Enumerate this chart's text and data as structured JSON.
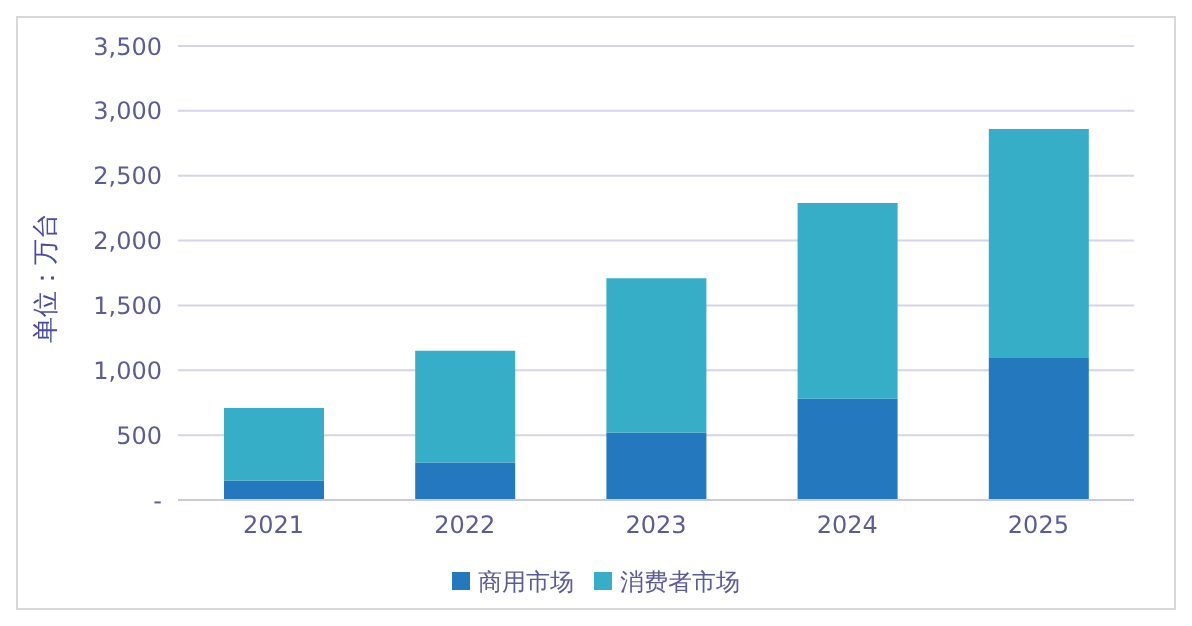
{
  "chart_data": {
    "type": "bar",
    "stacked": true,
    "ylabel": "单位：万台",
    "categories": [
      "2021",
      "2022",
      "2023",
      "2024",
      "2025"
    ],
    "series": [
      {
        "name": "商用市场",
        "color": "#2378be",
        "values": [
          150,
          290,
          520,
          780,
          1100
        ]
      },
      {
        "name": "消费者市场",
        "color": "#36aec8",
        "values": [
          560,
          860,
          1190,
          1510,
          1760
        ]
      }
    ],
    "ylim": [
      0,
      3500
    ],
    "yticks": [
      {
        "value": 0,
        "label": "-"
      },
      500,
      {
        "value": 1000,
        "label": "1,000"
      },
      {
        "value": 1500,
        "label": "1,500"
      },
      {
        "value": 2000,
        "label": "2,000"
      },
      {
        "value": 2500,
        "label": "2,500"
      },
      {
        "value": 3000,
        "label": "3,000"
      },
      {
        "value": 3500,
        "label": "3,500"
      }
    ],
    "grid": "y",
    "legend": "bottom"
  }
}
